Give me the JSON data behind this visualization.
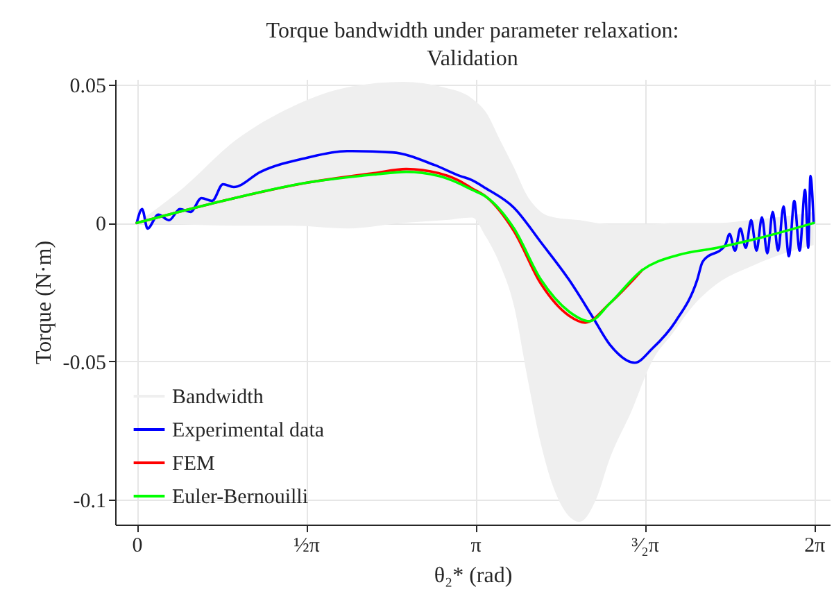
{
  "chart_data": {
    "type": "line",
    "title": "Torque bandwidth under parameter relaxation: Validation",
    "xlabel": "θ₂* (rad)",
    "ylabel": "Torque (N·m)",
    "xlim": [
      -0.2,
      6.43
    ],
    "ylim": [
      -0.109,
      0.052
    ],
    "xticks": [
      {
        "value": 0,
        "label": "0"
      },
      {
        "value": 1.5708,
        "label": "½π"
      },
      {
        "value": 3.1416,
        "label": "π"
      },
      {
        "value": 4.7124,
        "label": "³⁄₂π"
      },
      {
        "value": 6.2832,
        "label": "2π"
      }
    ],
    "yticks": [
      {
        "value": 0.05,
        "label": "0.05"
      },
      {
        "value": 0,
        "label": "0"
      },
      {
        "value": -0.05,
        "label": "-0.05"
      },
      {
        "value": -0.1,
        "label": "-0.1"
      }
    ],
    "grid": true,
    "legend": "bottom left",
    "series": [
      {
        "name": "Bandwidth",
        "type": "area",
        "color": "#efefef",
        "values": [
          null,
          null,
          null,
          null,
          null,
          null,
          null,
          null,
          null,
          null,
          null,
          null,
          null,
          null,
          null,
          null,
          null,
          null,
          null,
          null,
          null,
          null,
          null,
          null,
          null
        ],
        "x": [
          0,
          0.41,
          0.92,
          1.44,
          1.95,
          2.47,
          2.85,
          3.11,
          3.24,
          3.37,
          3.5,
          3.62,
          3.75,
          3.88,
          4.11,
          4.26,
          4.39,
          4.59,
          4.78,
          4.97,
          5.16,
          5.42,
          5.68,
          5.93,
          6.28
        ],
        "upper": [
          0,
          0.012,
          0.03,
          0.042,
          0.049,
          0.051,
          0.049,
          0.045,
          0.04,
          0.03,
          0.02,
          0.01,
          0.004,
          0.002,
          0.001,
          0,
          -0.0005,
          -0.0005,
          -0.0005,
          0,
          0,
          0,
          0.001,
          0.002,
          0.004
        ],
        "lower": [
          0,
          -0.0005,
          -0.001,
          -0.001,
          -0.002,
          0,
          0.001,
          0.002,
          -0.005,
          -0.015,
          -0.03,
          -0.055,
          -0.08,
          -0.097,
          -0.108,
          -0.1,
          -0.085,
          -0.068,
          -0.05,
          -0.04,
          -0.03,
          -0.021,
          -0.016,
          -0.012,
          -0.008
        ]
      },
      {
        "name": "Experimental data",
        "color": "#0000ff",
        "x": [
          0,
          0.05,
          0.1,
          0.2,
          0.3,
          0.4,
          0.5,
          0.6,
          0.7,
          0.8,
          0.9,
          1.15,
          1.57,
          1.95,
          2.37,
          2.76,
          3.0,
          3.11,
          3.24,
          3.5,
          3.75,
          4.01,
          4.23,
          4.39,
          4.62,
          4.78,
          5.0,
          5.2,
          5.25,
          5.46,
          5.5,
          5.55,
          5.6,
          5.65,
          5.7,
          5.75,
          5.8,
          5.85,
          5.9,
          5.95,
          6.0,
          6.05,
          6.1,
          6.15,
          6.2,
          6.23,
          6.25,
          6.28
        ],
        "values": [
          0,
          0.005,
          -0.002,
          0.003,
          0.001,
          0.005,
          0.004,
          0.009,
          0.008,
          0.014,
          0.013,
          0.0185,
          0.0235,
          0.026,
          0.0255,
          0.021,
          0.017,
          0.0155,
          0.0125,
          0.0055,
          -0.007,
          -0.0205,
          -0.034,
          -0.044,
          -0.0505,
          -0.0455,
          -0.0355,
          -0.0205,
          -0.014,
          -0.008,
          -0.004,
          -0.01,
          -0.002,
          -0.009,
          0.001,
          -0.01,
          0.002,
          -0.011,
          0.004,
          -0.01,
          0.006,
          -0.012,
          0.008,
          -0.01,
          0.012,
          -0.009,
          0.017,
          0
        ]
      },
      {
        "name": "FEM",
        "color": "#ff0000",
        "x": [
          0,
          0.8,
          1.57,
          2.2,
          2.5,
          2.8,
          2.98,
          3.11,
          3.24,
          3.5,
          3.75,
          4.01,
          4.16,
          4.39,
          4.69
        ],
        "values": [
          0,
          0.008,
          0.0145,
          0.018,
          0.0195,
          0.018,
          0.0155,
          0.0125,
          0.0095,
          -0.003,
          -0.022,
          -0.0335,
          -0.036,
          -0.029,
          -0.017
        ]
      },
      {
        "name": "Euler-Bernouilli",
        "color": "#00ff00",
        "x": [
          0,
          0.8,
          1.57,
          2.2,
          2.5,
          2.8,
          2.98,
          3.11,
          3.24,
          3.5,
          3.75,
          4.01,
          4.2,
          4.39,
          4.69,
          5.03,
          5.38,
          5.77,
          6.28
        ],
        "values": [
          0,
          0.008,
          0.0145,
          0.0175,
          0.0185,
          0.017,
          0.0145,
          0.012,
          0.0095,
          -0.002,
          -0.0205,
          -0.032,
          -0.0355,
          -0.029,
          -0.017,
          -0.0115,
          -0.009,
          -0.0055,
          0
        ]
      }
    ]
  }
}
